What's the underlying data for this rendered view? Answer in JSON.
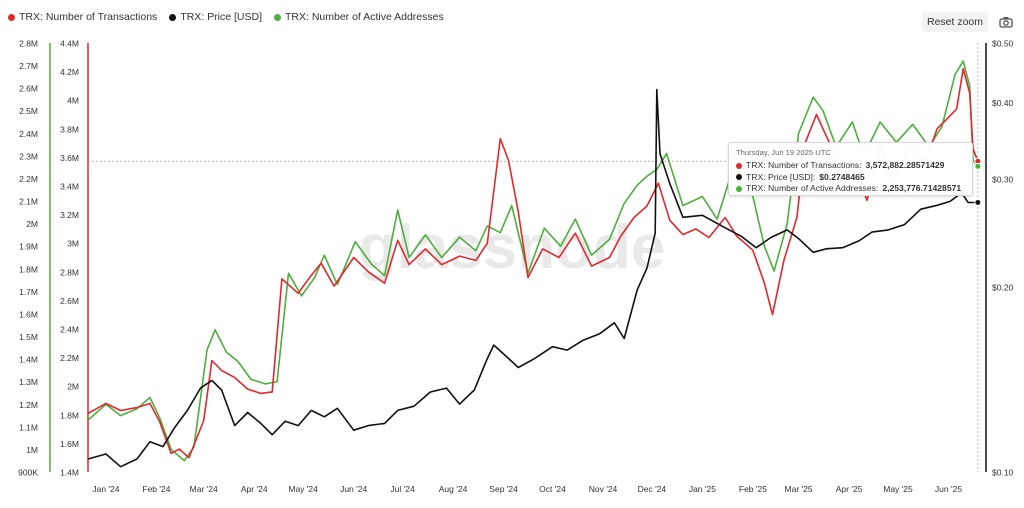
{
  "legend": {
    "items": [
      {
        "label": "TRX: Number of Transactions",
        "color": "#e0282e"
      },
      {
        "label": "TRX: Price [USD]",
        "color": "#111111"
      },
      {
        "label": "TRX: Number of Active Addresses",
        "color": "#4caf3c"
      }
    ]
  },
  "toolbar": {
    "reset_label": "Reset zoom",
    "camera_icon": "camera-icon"
  },
  "tooltip": {
    "date": "Thursday, Jun 19 2025 UTC",
    "rows": [
      {
        "label": "TRX: Number of Transactions:",
        "value": "3,572,882.28571429",
        "color": "#e0282e"
      },
      {
        "label": "TRX: Price [USD]:",
        "value": "$0.2748465",
        "color": "#111111"
      },
      {
        "label": "TRX: Number of Active Addresses:",
        "value": "2,253,776.71428571",
        "color": "#4caf3c"
      }
    ]
  },
  "chart_data": {
    "type": "line",
    "watermark": "glassnode",
    "x_ticks": [
      "Jan '24",
      "Feb '24",
      "Mar '24",
      "Apr '24",
      "May '24",
      "Jun '24",
      "Jul '24",
      "Aug '24",
      "Sep '24",
      "Oct '24",
      "Nov '24",
      "Dec '24",
      "Jan '25",
      "Feb '25",
      "Mar '25",
      "Apr '25",
      "May '25",
      "Jun '25"
    ],
    "x_range": [
      "2023-12-21",
      "2025-06-24"
    ],
    "axes": {
      "active_addresses": {
        "side": "left-outer",
        "ylim": [
          900000,
          2800000
        ],
        "ticks": [
          "900K",
          "1M",
          "1.1M",
          "1.2M",
          "1.3M",
          "1.4M",
          "1.5M",
          "1.6M",
          "1.7M",
          "1.8M",
          "1.9M",
          "2M",
          "2.1M",
          "2.2M",
          "2.3M",
          "2.4M",
          "2.5M",
          "2.6M",
          "2.7M",
          "2.8M"
        ]
      },
      "transactions": {
        "side": "left-inner",
        "ylim": [
          1400000,
          4400000
        ],
        "ticks": [
          "1.4M",
          "1.6M",
          "1.8M",
          "2M",
          "2.2M",
          "2.4M",
          "2.6M",
          "2.8M",
          "3M",
          "3.2M",
          "3.4M",
          "3.6M",
          "3.8M",
          "4M",
          "4.2M",
          "4.4M"
        ]
      },
      "price": {
        "side": "right",
        "scale": "log",
        "ylim": [
          0.1,
          0.5
        ],
        "ticks": [
          "$0.10",
          "$0.20",
          "$0.30",
          "$0.40",
          "$0.50"
        ]
      }
    },
    "series": [
      {
        "name": "TRX: Number of Transactions",
        "color": "#e0282e",
        "axis": "transactions",
        "points": [
          [
            "2023-12-21",
            1810000
          ],
          [
            "2024-01-01",
            1880000
          ],
          [
            "2024-01-10",
            1830000
          ],
          [
            "2024-01-20",
            1850000
          ],
          [
            "2024-01-28",
            1880000
          ],
          [
            "2024-02-03",
            1750000
          ],
          [
            "2024-02-10",
            1530000
          ],
          [
            "2024-02-15",
            1560000
          ],
          [
            "2024-02-21",
            1500000
          ],
          [
            "2024-03-01",
            1760000
          ],
          [
            "2024-03-06",
            2180000
          ],
          [
            "2024-03-12",
            2110000
          ],
          [
            "2024-03-20",
            2060000
          ],
          [
            "2024-03-28",
            1980000
          ],
          [
            "2024-04-05",
            1950000
          ],
          [
            "2024-04-12",
            1960000
          ],
          [
            "2024-04-18",
            2750000
          ],
          [
            "2024-04-28",
            2650000
          ],
          [
            "2024-05-05",
            2760000
          ],
          [
            "2024-05-12",
            2860000
          ],
          [
            "2024-05-20",
            2700000
          ],
          [
            "2024-06-01",
            2900000
          ],
          [
            "2024-06-10",
            2800000
          ],
          [
            "2024-06-20",
            2720000
          ],
          [
            "2024-06-28",
            3020000
          ],
          [
            "2024-07-05",
            2850000
          ],
          [
            "2024-07-15",
            2960000
          ],
          [
            "2024-07-25",
            2850000
          ],
          [
            "2024-08-05",
            2910000
          ],
          [
            "2024-08-15",
            2880000
          ],
          [
            "2024-08-22",
            3000000
          ],
          [
            "2024-08-30",
            3730000
          ],
          [
            "2024-09-04",
            3580000
          ],
          [
            "2024-09-10",
            3220000
          ],
          [
            "2024-09-16",
            2760000
          ],
          [
            "2024-09-25",
            2960000
          ],
          [
            "2024-10-05",
            2900000
          ],
          [
            "2024-10-15",
            3070000
          ],
          [
            "2024-10-25",
            2840000
          ],
          [
            "2024-11-05",
            2900000
          ],
          [
            "2024-11-12",
            3050000
          ],
          [
            "2024-11-20",
            3180000
          ],
          [
            "2024-11-28",
            3260000
          ],
          [
            "2024-12-05",
            3420000
          ],
          [
            "2024-12-12",
            3160000
          ],
          [
            "2024-12-20",
            3060000
          ],
          [
            "2024-12-28",
            3100000
          ],
          [
            "2025-01-05",
            3040000
          ],
          [
            "2025-01-15",
            3180000
          ],
          [
            "2025-01-22",
            3050000
          ],
          [
            "2025-02-01",
            2950000
          ],
          [
            "2025-02-08",
            2720000
          ],
          [
            "2025-02-13",
            2500000
          ],
          [
            "2025-02-20",
            2880000
          ],
          [
            "2025-02-28",
            3180000
          ],
          [
            "2025-03-05",
            3700000
          ],
          [
            "2025-03-12",
            3900000
          ],
          [
            "2025-03-20",
            3700000
          ],
          [
            "2025-03-28",
            3460000
          ],
          [
            "2025-04-05",
            3500000
          ],
          [
            "2025-04-12",
            3300000
          ],
          [
            "2025-04-20",
            3680000
          ],
          [
            "2025-04-28",
            3400000
          ],
          [
            "2025-05-08",
            3680000
          ],
          [
            "2025-05-18",
            3570000
          ],
          [
            "2025-05-25",
            3800000
          ],
          [
            "2025-06-01",
            3880000
          ],
          [
            "2025-06-06",
            3940000
          ],
          [
            "2025-06-10",
            4220000
          ],
          [
            "2025-06-14",
            4050000
          ],
          [
            "2025-06-16",
            3660000
          ],
          [
            "2025-06-19",
            3572882
          ]
        ]
      },
      {
        "name": "TRX: Price [USD]",
        "color": "#111111",
        "axis": "price",
        "points": [
          [
            "2023-12-21",
            0.105
          ],
          [
            "2024-01-01",
            0.107
          ],
          [
            "2024-01-10",
            0.102
          ],
          [
            "2024-01-20",
            0.105
          ],
          [
            "2024-01-28",
            0.112
          ],
          [
            "2024-02-05",
            0.11
          ],
          [
            "2024-02-12",
            0.118
          ],
          [
            "2024-02-20",
            0.126
          ],
          [
            "2024-02-28",
            0.137
          ],
          [
            "2024-03-06",
            0.141
          ],
          [
            "2024-03-12",
            0.136
          ],
          [
            "2024-03-20",
            0.119
          ],
          [
            "2024-03-28",
            0.125
          ],
          [
            "2024-04-05",
            0.12
          ],
          [
            "2024-04-12",
            0.115
          ],
          [
            "2024-04-20",
            0.121
          ],
          [
            "2024-04-28",
            0.119
          ],
          [
            "2024-05-06",
            0.126
          ],
          [
            "2024-05-14",
            0.123
          ],
          [
            "2024-05-22",
            0.127
          ],
          [
            "2024-06-01",
            0.117
          ],
          [
            "2024-06-10",
            0.119
          ],
          [
            "2024-06-20",
            0.12
          ],
          [
            "2024-06-28",
            0.126
          ],
          [
            "2024-07-08",
            0.128
          ],
          [
            "2024-07-18",
            0.135
          ],
          [
            "2024-07-28",
            0.137
          ],
          [
            "2024-08-05",
            0.129
          ],
          [
            "2024-08-14",
            0.136
          ],
          [
            "2024-08-22",
            0.153
          ],
          [
            "2024-08-26",
            0.161
          ],
          [
            "2024-09-03",
            0.154
          ],
          [
            "2024-09-10",
            0.148
          ],
          [
            "2024-09-20",
            0.153
          ],
          [
            "2024-10-01",
            0.16
          ],
          [
            "2024-10-10",
            0.158
          ],
          [
            "2024-10-20",
            0.164
          ],
          [
            "2024-10-30",
            0.168
          ],
          [
            "2024-11-08",
            0.175
          ],
          [
            "2024-11-14",
            0.165
          ],
          [
            "2024-11-22",
            0.198
          ],
          [
            "2024-11-28",
            0.215
          ],
          [
            "2024-12-03",
            0.245
          ],
          [
            "2024-12-04",
            0.42
          ],
          [
            "2024-12-06",
            0.33
          ],
          [
            "2024-12-12",
            0.295
          ],
          [
            "2024-12-20",
            0.26
          ],
          [
            "2025-01-01",
            0.262
          ],
          [
            "2025-01-15",
            0.25
          ],
          [
            "2025-01-25",
            0.242
          ],
          [
            "2025-02-03",
            0.232
          ],
          [
            "2025-02-12",
            0.241
          ],
          [
            "2025-02-22",
            0.248
          ],
          [
            "2025-03-01",
            0.24
          ],
          [
            "2025-03-10",
            0.228
          ],
          [
            "2025-03-18",
            0.231
          ],
          [
            "2025-03-28",
            0.232
          ],
          [
            "2025-04-07",
            0.238
          ],
          [
            "2025-04-15",
            0.246
          ],
          [
            "2025-04-25",
            0.248
          ],
          [
            "2025-05-05",
            0.253
          ],
          [
            "2025-05-15",
            0.268
          ],
          [
            "2025-05-25",
            0.272
          ],
          [
            "2025-06-02",
            0.276
          ],
          [
            "2025-06-09",
            0.285
          ],
          [
            "2025-06-13",
            0.275
          ],
          [
            "2025-06-19",
            0.2748465
          ]
        ]
      },
      {
        "name": "TRX: Number of Active Addresses",
        "color": "#4caf3c",
        "axis": "active_addresses",
        "points": [
          [
            "2023-12-21",
            1130000
          ],
          [
            "2024-01-01",
            1200000
          ],
          [
            "2024-01-10",
            1150000
          ],
          [
            "2024-01-20",
            1180000
          ],
          [
            "2024-01-28",
            1230000
          ],
          [
            "2024-02-03",
            1140000
          ],
          [
            "2024-02-10",
            1000000
          ],
          [
            "2024-02-18",
            950000
          ],
          [
            "2024-02-24",
            1010000
          ],
          [
            "2024-03-03",
            1440000
          ],
          [
            "2024-03-08",
            1530000
          ],
          [
            "2024-03-15",
            1430000
          ],
          [
            "2024-03-22",
            1390000
          ],
          [
            "2024-03-30",
            1310000
          ],
          [
            "2024-04-08",
            1290000
          ],
          [
            "2024-04-15",
            1300000
          ],
          [
            "2024-04-22",
            1780000
          ],
          [
            "2024-04-30",
            1680000
          ],
          [
            "2024-05-08",
            1760000
          ],
          [
            "2024-05-14",
            1860000
          ],
          [
            "2024-05-22",
            1730000
          ],
          [
            "2024-06-02",
            1920000
          ],
          [
            "2024-06-12",
            1820000
          ],
          [
            "2024-06-20",
            1770000
          ],
          [
            "2024-06-28",
            2060000
          ],
          [
            "2024-07-05",
            1850000
          ],
          [
            "2024-07-15",
            1950000
          ],
          [
            "2024-07-25",
            1850000
          ],
          [
            "2024-08-05",
            1940000
          ],
          [
            "2024-08-15",
            1880000
          ],
          [
            "2024-08-22",
            1990000
          ],
          [
            "2024-08-30",
            1960000
          ],
          [
            "2024-09-06",
            2080000
          ],
          [
            "2024-09-16",
            1780000
          ],
          [
            "2024-09-26",
            1980000
          ],
          [
            "2024-10-06",
            1900000
          ],
          [
            "2024-10-15",
            2020000
          ],
          [
            "2024-10-25",
            1860000
          ],
          [
            "2024-11-05",
            1930000
          ],
          [
            "2024-11-14",
            2090000
          ],
          [
            "2024-11-22",
            2170000
          ],
          [
            "2024-11-28",
            2210000
          ],
          [
            "2024-12-04",
            2240000
          ],
          [
            "2024-12-10",
            2310000
          ],
          [
            "2024-12-20",
            2080000
          ],
          [
            "2025-01-01",
            2120000
          ],
          [
            "2025-01-10",
            2020000
          ],
          [
            "2025-01-20",
            2250000
          ],
          [
            "2025-02-01",
            2120000
          ],
          [
            "2025-02-08",
            1900000
          ],
          [
            "2025-02-14",
            1790000
          ],
          [
            "2025-02-22",
            2000000
          ],
          [
            "2025-03-01",
            2400000
          ],
          [
            "2025-03-10",
            2560000
          ],
          [
            "2025-03-16",
            2500000
          ],
          [
            "2025-03-24",
            2340000
          ],
          [
            "2025-04-03",
            2450000
          ],
          [
            "2025-04-10",
            2300000
          ],
          [
            "2025-04-20",
            2450000
          ],
          [
            "2025-04-30",
            2360000
          ],
          [
            "2025-05-10",
            2440000
          ],
          [
            "2025-05-20",
            2340000
          ],
          [
            "2025-05-28",
            2430000
          ],
          [
            "2025-06-05",
            2660000
          ],
          [
            "2025-06-10",
            2720000
          ],
          [
            "2025-06-14",
            2610000
          ],
          [
            "2025-06-16",
            2280000
          ],
          [
            "2025-06-19",
            2253776
          ]
        ]
      }
    ],
    "crosshair_date": "2025-06-19"
  }
}
